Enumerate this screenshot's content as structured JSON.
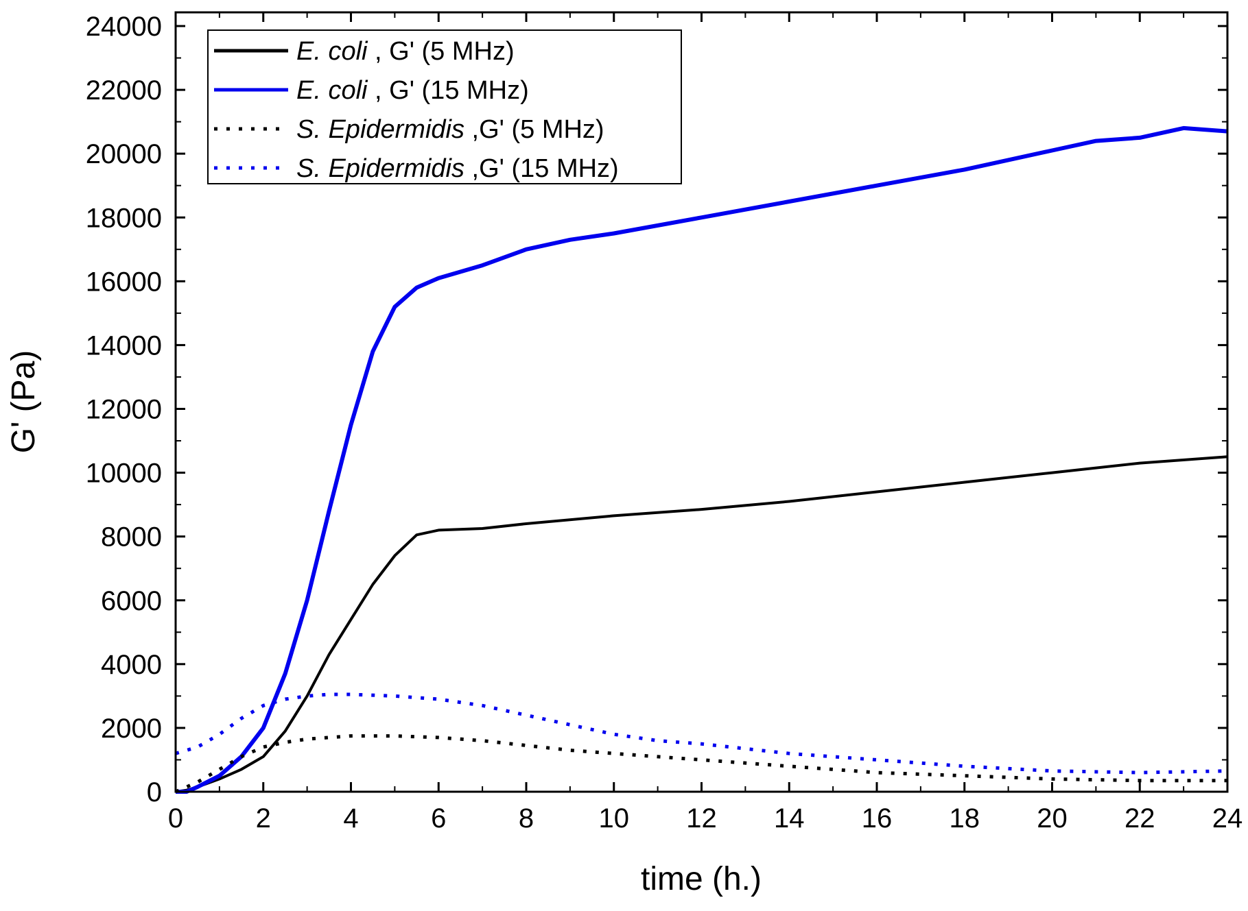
{
  "chart_data": {
    "type": "line",
    "title": "",
    "xlabel": "time (h.)",
    "ylabel": "G' (Pa)",
    "xlim": [
      0,
      24
    ],
    "ylim": [
      0,
      24000
    ],
    "x_ticks": [
      "0",
      "2",
      "4",
      "6",
      "8",
      "10",
      "12",
      "14",
      "16",
      "18",
      "20",
      "22",
      "24"
    ],
    "y_ticks": [
      "0",
      "2000",
      "4000",
      "6000",
      "8000",
      "10000",
      "12000",
      "14000",
      "16000",
      "18000",
      "20000",
      "22000",
      "24000"
    ],
    "grid": false,
    "legend_position": "top-left",
    "series": [
      {
        "name_italic": "E. coli",
        "name_suffix": " , G' (5 MHz)",
        "color": "#000000",
        "style": "solid",
        "x": [
          0,
          0.25,
          0.5,
          1,
          1.5,
          2,
          2.5,
          3,
          3.5,
          4,
          4.5,
          5,
          5.5,
          6,
          7,
          8,
          10,
          12,
          14,
          16,
          18,
          20,
          22,
          24
        ],
        "y": [
          0,
          50,
          150,
          400,
          700,
          1100,
          1900,
          3000,
          4300,
          5400,
          6500,
          7400,
          8050,
          8200,
          8250,
          8400,
          8650,
          8850,
          9100,
          9400,
          9700,
          10000,
          10300,
          10500
        ]
      },
      {
        "name_italic": "E. coli",
        "name_suffix": " , G' (15 MHz)",
        "color": "#0000ee",
        "style": "solid",
        "x": [
          0,
          0.25,
          0.5,
          1,
          1.5,
          2,
          2.5,
          3,
          3.5,
          4,
          4.5,
          5,
          5.5,
          6,
          7,
          8,
          9,
          10,
          12,
          14,
          16,
          18,
          20,
          21,
          22,
          23,
          24
        ],
        "y": [
          0,
          0,
          150,
          500,
          1100,
          2000,
          3700,
          6000,
          8800,
          11500,
          13800,
          15200,
          15800,
          16100,
          16500,
          17000,
          17300,
          17500,
          18000,
          18500,
          19000,
          19500,
          20100,
          20400,
          20500,
          20800,
          20700
        ]
      },
      {
        "name_italic": "S. Epidermidis",
        "name_suffix": " ,G' (5 MHz)",
        "color": "#000000",
        "style": "dotted",
        "x": [
          0,
          0.5,
          1,
          1.5,
          2,
          2.5,
          3,
          4,
          5,
          6,
          7,
          8,
          9,
          10,
          12,
          14,
          16,
          18,
          20,
          22,
          24
        ],
        "y": [
          0,
          300,
          700,
          1100,
          1400,
          1550,
          1650,
          1750,
          1750,
          1700,
          1600,
          1450,
          1300,
          1200,
          1000,
          800,
          600,
          500,
          400,
          350,
          350
        ]
      },
      {
        "name_italic": "S. Epidermidis",
        "name_suffix": " ,G' (15 MHz)",
        "color": "#0000ee",
        "style": "dotted",
        "x": [
          0,
          0.5,
          1,
          1.5,
          2,
          2.5,
          3,
          3.5,
          4,
          5,
          6,
          7,
          8,
          9,
          10,
          11,
          12,
          14,
          16,
          18,
          20,
          22,
          24
        ],
        "y": [
          1200,
          1400,
          1800,
          2300,
          2700,
          2900,
          3000,
          3050,
          3050,
          3000,
          2900,
          2700,
          2400,
          2100,
          1800,
          1600,
          1500,
          1200,
          1000,
          800,
          650,
          600,
          650
        ]
      }
    ]
  }
}
